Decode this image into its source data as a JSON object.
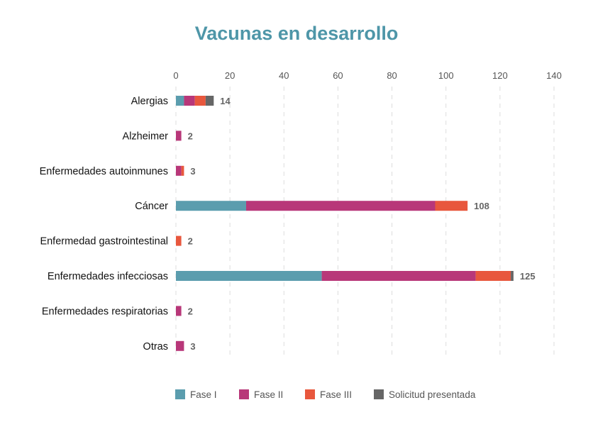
{
  "chart_data": {
    "type": "bar",
    "orientation": "horizontal",
    "stacked": true,
    "title": "Vacunas en desarrollo",
    "xlabel": "",
    "ylabel": "",
    "xlim": [
      0,
      140
    ],
    "xticks": [
      0,
      20,
      40,
      60,
      80,
      100,
      120,
      140
    ],
    "grid": true,
    "legend_position": "bottom",
    "categories": [
      "Alergias",
      "Alzheimer",
      "Enfermedades autoinmunes",
      "Cáncer",
      "Enfermedad gastrointestinal",
      "Enfermedades infecciosas",
      "Enfermedades respiratorias",
      "Otras"
    ],
    "series": [
      {
        "name": "Fase I",
        "color": "#5b9dae",
        "values": [
          3,
          0,
          0,
          26,
          0,
          54,
          0,
          0
        ]
      },
      {
        "name": "Fase II",
        "color": "#b83779",
        "values": [
          4,
          2,
          2,
          70,
          0,
          57,
          2,
          3
        ]
      },
      {
        "name": "Fase III",
        "color": "#e8573d",
        "values": [
          4,
          0,
          1,
          12,
          2,
          13,
          0,
          0
        ]
      },
      {
        "name": "Solicitud presentada",
        "color": "#666666",
        "values": [
          3,
          0,
          0,
          0,
          0,
          1,
          0,
          0
        ]
      }
    ],
    "totals": [
      14,
      2,
      3,
      108,
      2,
      125,
      2,
      3
    ]
  }
}
